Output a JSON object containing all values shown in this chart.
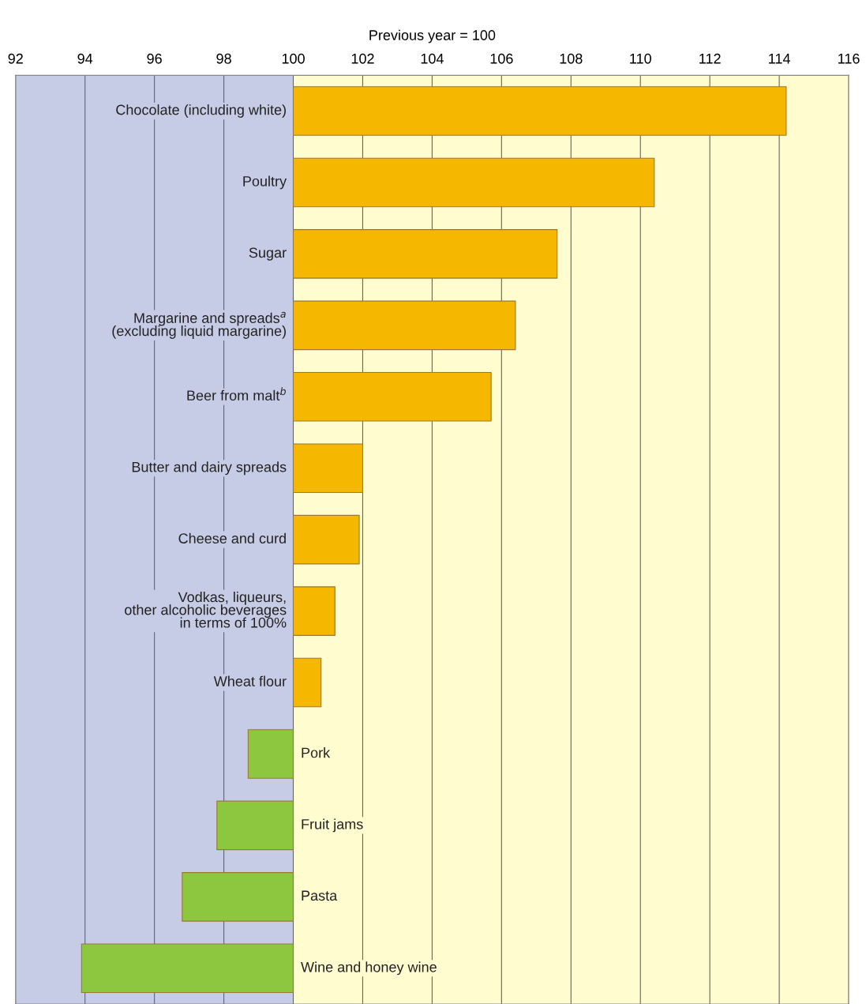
{
  "chart_data": {
    "type": "bar",
    "orientation": "horizontal",
    "xlabel": "Previous year = 100",
    "categories": [
      "Chocolate (including white)",
      "Poultry",
      "Sugar",
      "Margarine and spreads$^{a}$\n(excluding liquid margarine)",
      "Beer from malt$^{b}$",
      "Butter and dairy spreads",
      "Cheese and curd",
      "Vodkas, liqueurs,\nother alcoholic beverages\nin terms of 100%",
      "Wheat flour",
      "Pork",
      "Fruit jams",
      "Pasta",
      "Wine and honey wine"
    ],
    "base": [
      100,
      100,
      100,
      100,
      100,
      100,
      100,
      100,
      100,
      100,
      100,
      100,
      100
    ],
    "values": [
      14.2,
      10.4,
      7.6,
      6.4,
      5.7,
      2.0,
      1.9,
      1.2,
      0.8,
      -1.3,
      -2.2,
      -3.2,
      -6.1
    ],
    "colors": [
      "#f5b700",
      "#f5b700",
      "#f5b700",
      "#f5b700",
      "#f5b700",
      "#f5b700",
      "#f5b700",
      "#f5b700",
      "#f5b700",
      "#8dc63f",
      "#8dc63f",
      "#8dc63f",
      "#8dc63f"
    ],
    "xlim": [
      92,
      116
    ],
    "xticks": [
      92,
      94,
      96,
      98,
      100,
      102,
      104,
      106,
      108,
      110,
      112,
      114,
      116
    ],
    "bands": [
      {
        "axis": "x",
        "from": 92,
        "to": 100,
        "color": "#c7cce6"
      },
      {
        "axis": "x",
        "from": 100,
        "to": 116,
        "color": "#fffcd0"
      }
    ],
    "grid": "x",
    "tick_labels": "x"
  }
}
